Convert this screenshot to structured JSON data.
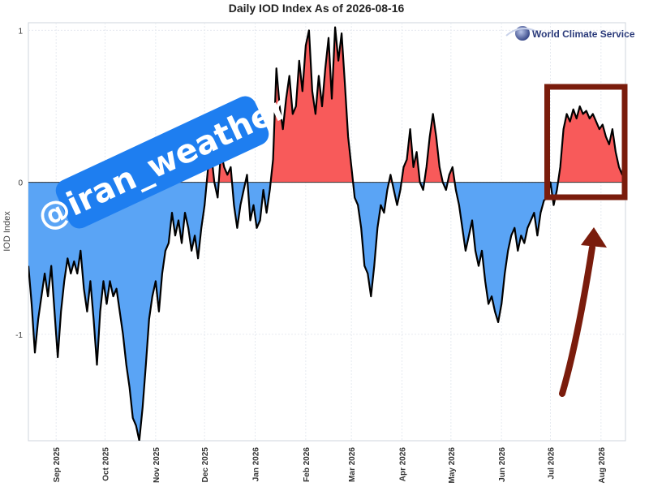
{
  "chart_data": {
    "type": "area",
    "title": "Daily IOD Index As of 2026-08-16",
    "xlabel": "",
    "ylabel": "IOD Index",
    "ylim": [
      -1.7,
      1.05
    ],
    "yticks": [
      {
        "value": 1,
        "label": "1"
      },
      {
        "value": 0,
        "label": "0"
      },
      {
        "value": -1,
        "label": "-1"
      }
    ],
    "xlim": [
      "2025-08-15",
      "2026-08-16"
    ],
    "xticks": [
      {
        "date": "2025-09-01",
        "label": "Sep 2025"
      },
      {
        "date": "2025-10-01",
        "label": "Oct 2025"
      },
      {
        "date": "2025-11-01",
        "label": "Nov 2025"
      },
      {
        "date": "2025-12-01",
        "label": "Dec 2025"
      },
      {
        "date": "2026-01-01",
        "label": "Jan 2026"
      },
      {
        "date": "2026-02-01",
        "label": "Feb 2026"
      },
      {
        "date": "2026-03-01",
        "label": "Mar 2026"
      },
      {
        "date": "2026-04-01",
        "label": "Apr 2026"
      },
      {
        "date": "2026-05-01",
        "label": "May 2026"
      },
      {
        "date": "2026-06-01",
        "label": "Jun 2026"
      },
      {
        "date": "2026-07-01",
        "label": "Jul 2026"
      },
      {
        "date": "2026-08-01",
        "label": "Aug 2026"
      }
    ],
    "grid": true,
    "positive_color": "#f85a5a",
    "negative_color": "#5aa4f5",
    "line_color": "#000000",
    "series": [
      {
        "points": [
          [
            "2025-08-15",
            -0.55
          ],
          [
            "2025-08-17",
            -0.8
          ],
          [
            "2025-08-19",
            -1.12
          ],
          [
            "2025-08-21",
            -0.9
          ],
          [
            "2025-08-23",
            -0.75
          ],
          [
            "2025-08-25",
            -0.6
          ],
          [
            "2025-08-27",
            -0.75
          ],
          [
            "2025-08-29",
            -0.55
          ],
          [
            "2025-08-31",
            -0.85
          ],
          [
            "2025-09-02",
            -1.15
          ],
          [
            "2025-09-04",
            -0.85
          ],
          [
            "2025-09-06",
            -0.65
          ],
          [
            "2025-09-08",
            -0.5
          ],
          [
            "2025-09-10",
            -0.6
          ],
          [
            "2025-09-12",
            -0.52
          ],
          [
            "2025-09-14",
            -0.6
          ],
          [
            "2025-09-16",
            -0.45
          ],
          [
            "2025-09-18",
            -0.7
          ],
          [
            "2025-09-20",
            -0.85
          ],
          [
            "2025-09-22",
            -0.65
          ],
          [
            "2025-09-24",
            -0.9
          ],
          [
            "2025-09-26",
            -1.2
          ],
          [
            "2025-09-28",
            -0.85
          ],
          [
            "2025-09-30",
            -0.65
          ],
          [
            "2025-10-02",
            -0.8
          ],
          [
            "2025-10-04",
            -0.65
          ],
          [
            "2025-10-06",
            -0.75
          ],
          [
            "2025-10-08",
            -0.7
          ],
          [
            "2025-10-10",
            -0.85
          ],
          [
            "2025-10-12",
            -1.0
          ],
          [
            "2025-10-14",
            -1.2
          ],
          [
            "2025-10-16",
            -1.35
          ],
          [
            "2025-10-18",
            -1.55
          ],
          [
            "2025-10-20",
            -1.6
          ],
          [
            "2025-10-22",
            -1.7
          ],
          [
            "2025-10-24",
            -1.48
          ],
          [
            "2025-10-26",
            -1.2
          ],
          [
            "2025-10-28",
            -0.9
          ],
          [
            "2025-10-30",
            -0.75
          ],
          [
            "2025-11-01",
            -0.65
          ],
          [
            "2025-11-03",
            -0.85
          ],
          [
            "2025-11-05",
            -0.6
          ],
          [
            "2025-11-07",
            -0.45
          ],
          [
            "2025-11-09",
            -0.4
          ],
          [
            "2025-11-11",
            -0.2
          ],
          [
            "2025-11-13",
            -0.35
          ],
          [
            "2025-11-15",
            -0.25
          ],
          [
            "2025-11-17",
            -0.4
          ],
          [
            "2025-11-19",
            -0.2
          ],
          [
            "2025-11-21",
            -0.3
          ],
          [
            "2025-11-23",
            -0.45
          ],
          [
            "2025-11-25",
            -0.35
          ],
          [
            "2025-11-27",
            -0.5
          ],
          [
            "2025-11-29",
            -0.3
          ],
          [
            "2025-12-01",
            -0.15
          ],
          [
            "2025-12-03",
            0.08
          ],
          [
            "2025-12-05",
            0.2
          ],
          [
            "2025-12-07",
            0.0
          ],
          [
            "2025-12-09",
            -0.1
          ],
          [
            "2025-12-11",
            0.2
          ],
          [
            "2025-12-13",
            0.1
          ],
          [
            "2025-12-15",
            0.05
          ],
          [
            "2025-12-17",
            0.1
          ],
          [
            "2025-12-19",
            -0.15
          ],
          [
            "2025-12-21",
            -0.3
          ],
          [
            "2025-12-23",
            -0.15
          ],
          [
            "2025-12-25",
            -0.05
          ],
          [
            "2025-12-27",
            0.05
          ],
          [
            "2025-12-29",
            -0.25
          ],
          [
            "2025-12-31",
            -0.15
          ],
          [
            "2026-01-02",
            -0.3
          ],
          [
            "2026-01-04",
            -0.25
          ],
          [
            "2026-01-06",
            -0.05
          ],
          [
            "2026-01-08",
            -0.2
          ],
          [
            "2026-01-10",
            -0.05
          ],
          [
            "2026-01-12",
            0.15
          ],
          [
            "2026-01-14",
            0.75
          ],
          [
            "2026-01-16",
            0.5
          ],
          [
            "2026-01-18",
            0.35
          ],
          [
            "2026-01-20",
            0.55
          ],
          [
            "2026-01-22",
            0.7
          ],
          [
            "2026-01-24",
            0.45
          ],
          [
            "2026-01-26",
            0.5
          ],
          [
            "2026-01-28",
            0.8
          ],
          [
            "2026-01-30",
            0.6
          ],
          [
            "2026-02-01",
            0.9
          ],
          [
            "2026-02-03",
            1.0
          ],
          [
            "2026-02-05",
            0.6
          ],
          [
            "2026-02-07",
            0.45
          ],
          [
            "2026-02-09",
            0.7
          ],
          [
            "2026-02-11",
            0.5
          ],
          [
            "2026-02-13",
            0.75
          ],
          [
            "2026-02-15",
            0.95
          ],
          [
            "2026-02-17",
            0.55
          ],
          [
            "2026-02-19",
            1.02
          ],
          [
            "2026-02-21",
            0.8
          ],
          [
            "2026-02-23",
            0.98
          ],
          [
            "2026-02-25",
            0.65
          ],
          [
            "2026-02-27",
            0.3
          ],
          [
            "2026-03-01",
            0.1
          ],
          [
            "2026-03-03",
            -0.1
          ],
          [
            "2026-03-05",
            -0.15
          ],
          [
            "2026-03-07",
            -0.3
          ],
          [
            "2026-03-09",
            -0.55
          ],
          [
            "2026-03-11",
            -0.6
          ],
          [
            "2026-03-13",
            -0.75
          ],
          [
            "2026-03-15",
            -0.55
          ],
          [
            "2026-03-17",
            -0.3
          ],
          [
            "2026-03-19",
            -0.15
          ],
          [
            "2026-03-21",
            -0.2
          ],
          [
            "2026-03-23",
            -0.05
          ],
          [
            "2026-03-25",
            0.05
          ],
          [
            "2026-03-27",
            -0.05
          ],
          [
            "2026-03-29",
            -0.15
          ],
          [
            "2026-03-31",
            -0.05
          ],
          [
            "2026-04-02",
            0.1
          ],
          [
            "2026-04-04",
            0.15
          ],
          [
            "2026-04-06",
            0.35
          ],
          [
            "2026-04-08",
            0.1
          ],
          [
            "2026-04-10",
            0.2
          ],
          [
            "2026-04-12",
            0.0
          ],
          [
            "2026-04-14",
            -0.05
          ],
          [
            "2026-04-16",
            0.1
          ],
          [
            "2026-04-18",
            0.3
          ],
          [
            "2026-04-20",
            0.45
          ],
          [
            "2026-04-22",
            0.3
          ],
          [
            "2026-04-24",
            0.1
          ],
          [
            "2026-04-26",
            0.0
          ],
          [
            "2026-04-28",
            -0.05
          ],
          [
            "2026-04-30",
            0.05
          ],
          [
            "2026-05-02",
            0.1
          ],
          [
            "2026-05-04",
            -0.05
          ],
          [
            "2026-05-06",
            -0.15
          ],
          [
            "2026-05-08",
            -0.3
          ],
          [
            "2026-05-10",
            -0.45
          ],
          [
            "2026-05-12",
            -0.35
          ],
          [
            "2026-05-14",
            -0.25
          ],
          [
            "2026-05-16",
            -0.45
          ],
          [
            "2026-05-18",
            -0.55
          ],
          [
            "2026-05-20",
            -0.45
          ],
          [
            "2026-05-22",
            -0.65
          ],
          [
            "2026-05-24",
            -0.8
          ],
          [
            "2026-05-26",
            -0.75
          ],
          [
            "2026-05-28",
            -0.85
          ],
          [
            "2026-05-30",
            -0.92
          ],
          [
            "2026-06-01",
            -0.8
          ],
          [
            "2026-06-03",
            -0.6
          ],
          [
            "2026-06-05",
            -0.45
          ],
          [
            "2026-06-07",
            -0.35
          ],
          [
            "2026-06-09",
            -0.3
          ],
          [
            "2026-06-11",
            -0.45
          ],
          [
            "2026-06-13",
            -0.35
          ],
          [
            "2026-06-15",
            -0.4
          ],
          [
            "2026-06-17",
            -0.3
          ],
          [
            "2026-06-19",
            -0.25
          ],
          [
            "2026-06-21",
            -0.2
          ],
          [
            "2026-06-23",
            -0.35
          ],
          [
            "2026-06-25",
            -0.2
          ],
          [
            "2026-06-27",
            -0.12
          ],
          [
            "2026-06-29",
            -0.1
          ],
          [
            "2026-07-01",
            0.0
          ],
          [
            "2026-07-03",
            -0.15
          ],
          [
            "2026-07-05",
            -0.05
          ],
          [
            "2026-07-07",
            0.1
          ],
          [
            "2026-07-09",
            0.35
          ],
          [
            "2026-07-11",
            0.45
          ],
          [
            "2026-07-13",
            0.4
          ],
          [
            "2026-07-15",
            0.48
          ],
          [
            "2026-07-17",
            0.42
          ],
          [
            "2026-07-19",
            0.5
          ],
          [
            "2026-07-21",
            0.45
          ],
          [
            "2026-07-23",
            0.47
          ],
          [
            "2026-07-25",
            0.42
          ],
          [
            "2026-07-27",
            0.45
          ],
          [
            "2026-07-29",
            0.4
          ],
          [
            "2026-07-31",
            0.35
          ],
          [
            "2026-08-02",
            0.38
          ],
          [
            "2026-08-04",
            0.3
          ],
          [
            "2026-08-06",
            0.25
          ],
          [
            "2026-08-08",
            0.35
          ],
          [
            "2026-08-10",
            0.2
          ],
          [
            "2026-08-12",
            0.1
          ],
          [
            "2026-08-14",
            0.05
          ],
          [
            "2026-08-16",
            0.3
          ]
        ]
      }
    ]
  },
  "logo": {
    "text": "World Climate Service",
    "icon": "globe-icon"
  },
  "watermark": {
    "text": "@iran_weather"
  },
  "annotation": {
    "highlight_box_color": "#7a1c0c",
    "highlight_range": [
      "2026-07-01",
      "2026-08-16"
    ],
    "arrow_color": "#7a1c0c",
    "arrow_icon": "curved-arrow-icon"
  }
}
